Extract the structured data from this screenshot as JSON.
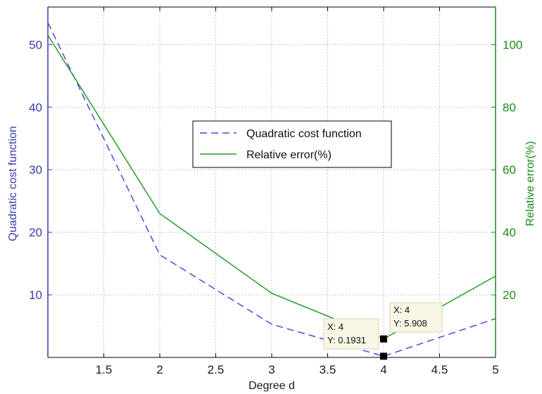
{
  "chart_data": {
    "type": "line",
    "xlabel": "Degree d",
    "ylabel_left": "Quadratic cost function",
    "ylabel_right": "Relative error(%)",
    "xlim": [
      1,
      5
    ],
    "ylim_left": [
      0,
      56
    ],
    "ylim_right": [
      0,
      112
    ],
    "x_ticks": [
      "1.5",
      "2",
      "2.5",
      "3",
      "3.5",
      "4",
      "4.5",
      "5"
    ],
    "y_ticks_left": [
      "10",
      "20",
      "30",
      "40",
      "50"
    ],
    "y_ticks_right": [
      "20",
      "40",
      "60",
      "80",
      "100"
    ],
    "grid": true,
    "legend_position": "center",
    "series": [
      {
        "name": "Quadratic cost function",
        "axis": "left",
        "color": "#4a4ad8",
        "style": "dashed",
        "x": [
          1,
          2,
          3,
          4,
          5
        ],
        "y": [
          53.5,
          16.4,
          5.3,
          0.1931,
          6.2
        ]
      },
      {
        "name": "Relative error(%)",
        "axis": "right",
        "color": "#2a9a2a",
        "style": "solid",
        "x": [
          1,
          2,
          3,
          4,
          5
        ],
        "y": [
          103,
          46,
          20.5,
          5.908,
          26
        ]
      }
    ],
    "annotations": [
      {
        "x_label": "X: 4",
        "y_label": "Y: 5.908",
        "x": 4,
        "y": 5.908,
        "axis": "right"
      },
      {
        "x_label": "X: 4",
        "y_label": "Y: 0.1931",
        "x": 4,
        "y": 0.1931,
        "axis": "left"
      }
    ]
  }
}
